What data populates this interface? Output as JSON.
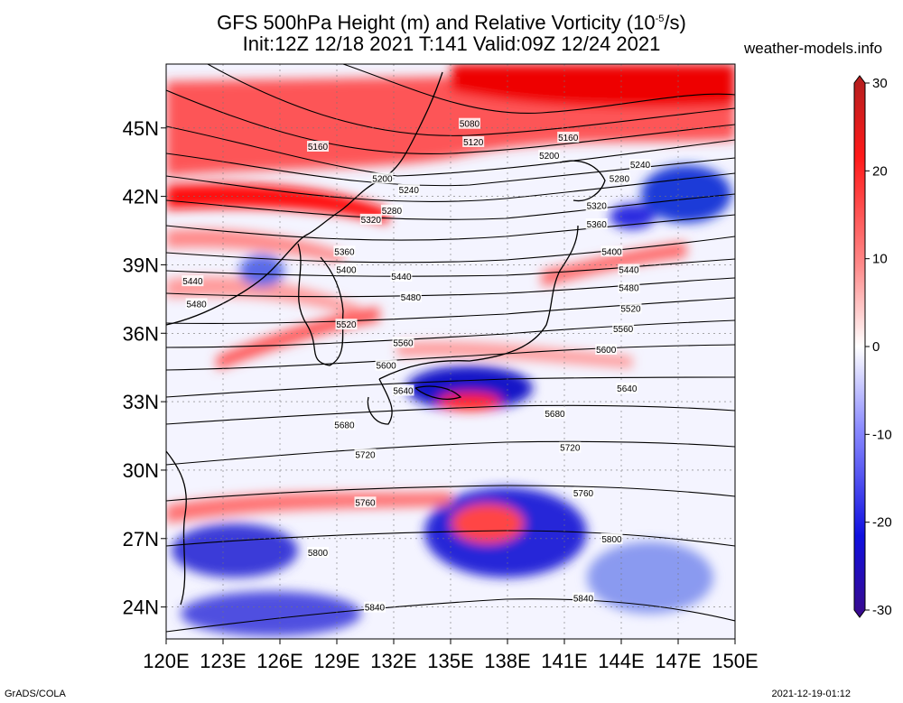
{
  "title_line1": "GFS 500hPa Height (m) and Relative Vorticity (10",
  "title_sup": "-5",
  "title_line1_end": "/s)",
  "title_line2": "Init:12Z 12/18 2021 T:141 Valid:09Z 12/24 2021",
  "site": "weather-models.info",
  "footer_left": "GrADS/COLA",
  "footer_right": "2021-12-19-01:12",
  "colors": {
    "positive": "#ff0000",
    "negative": "#0000dd",
    "neutral": "#ffffff",
    "contour": "#000000"
  },
  "map": {
    "lat_labels": [
      {
        "text": "45N",
        "lat": 45
      },
      {
        "text": "42N",
        "lat": 42
      },
      {
        "text": "39N",
        "lat": 39
      },
      {
        "text": "36N",
        "lat": 36
      },
      {
        "text": "33N",
        "lat": 33
      },
      {
        "text": "30N",
        "lat": 30
      },
      {
        "text": "27N",
        "lat": 27
      },
      {
        "text": "24N",
        "lat": 24
      }
    ],
    "lon_labels": [
      {
        "text": "120E",
        "lon": 120
      },
      {
        "text": "123E",
        "lon": 123
      },
      {
        "text": "126E",
        "lon": 126
      },
      {
        "text": "129E",
        "lon": 129
      },
      {
        "text": "132E",
        "lon": 132
      },
      {
        "text": "135E",
        "lon": 135
      },
      {
        "text": "138E",
        "lon": 138
      },
      {
        "text": "141E",
        "lon": 141
      },
      {
        "text": "144E",
        "lon": 144
      },
      {
        "text": "147E",
        "lon": 147
      },
      {
        "text": "150E",
        "lon": 150
      }
    ],
    "contour_labels": [
      {
        "text": "5080",
        "lon": 136.0,
        "lat": 45.2
      },
      {
        "text": "5120",
        "lon": 136.2,
        "lat": 44.4
      },
      {
        "text": "5160",
        "lon": 128.0,
        "lat": 44.2
      },
      {
        "text": "5160",
        "lon": 141.2,
        "lat": 44.6
      },
      {
        "text": "5200",
        "lon": 140.2,
        "lat": 43.8
      },
      {
        "text": "5200",
        "lon": 131.4,
        "lat": 42.8
      },
      {
        "text": "5240",
        "lon": 132.8,
        "lat": 42.3
      },
      {
        "text": "5240",
        "lon": 145.0,
        "lat": 43.4
      },
      {
        "text": "5280",
        "lon": 143.9,
        "lat": 42.8
      },
      {
        "text": "5280",
        "lon": 131.9,
        "lat": 41.4
      },
      {
        "text": "5320",
        "lon": 130.8,
        "lat": 41.0
      },
      {
        "text": "5320",
        "lon": 142.7,
        "lat": 41.6
      },
      {
        "text": "5360",
        "lon": 142.7,
        "lat": 40.8
      },
      {
        "text": "5360",
        "lon": 129.4,
        "lat": 39.6
      },
      {
        "text": "5400",
        "lon": 143.5,
        "lat": 39.6
      },
      {
        "text": "5400",
        "lon": 129.5,
        "lat": 38.8
      },
      {
        "text": "5440",
        "lon": 132.4,
        "lat": 38.5
      },
      {
        "text": "5440",
        "lon": 121.4,
        "lat": 38.3
      },
      {
        "text": "5440",
        "lon": 144.4,
        "lat": 38.8
      },
      {
        "text": "5480",
        "lon": 132.9,
        "lat": 37.6
      },
      {
        "text": "5480",
        "lon": 121.6,
        "lat": 37.3
      },
      {
        "text": "5480",
        "lon": 144.4,
        "lat": 38.0
      },
      {
        "text": "5520",
        "lon": 129.5,
        "lat": 36.4
      },
      {
        "text": "5520",
        "lon": 144.5,
        "lat": 37.1
      },
      {
        "text": "5560",
        "lon": 132.5,
        "lat": 35.6
      },
      {
        "text": "5560",
        "lon": 144.1,
        "lat": 36.2
      },
      {
        "text": "5600",
        "lon": 131.6,
        "lat": 34.6
      },
      {
        "text": "5600",
        "lon": 143.2,
        "lat": 35.3
      },
      {
        "text": "5640",
        "lon": 132.5,
        "lat": 33.5
      },
      {
        "text": "5640",
        "lon": 144.3,
        "lat": 33.6
      },
      {
        "text": "5680",
        "lon": 129.4,
        "lat": 32.0
      },
      {
        "text": "5680",
        "lon": 140.5,
        "lat": 32.5
      },
      {
        "text": "5720",
        "lon": 130.5,
        "lat": 30.7
      },
      {
        "text": "5720",
        "lon": 141.3,
        "lat": 31.0
      },
      {
        "text": "5760",
        "lon": 130.5,
        "lat": 28.6
      },
      {
        "text": "5760",
        "lon": 142.0,
        "lat": 29.0
      },
      {
        "text": "5800",
        "lon": 128.0,
        "lat": 26.4
      },
      {
        "text": "5800",
        "lon": 143.5,
        "lat": 27.0
      },
      {
        "text": "5840",
        "lon": 131.0,
        "lat": 24.0
      },
      {
        "text": "5840",
        "lon": 142.0,
        "lat": 24.4
      }
    ]
  },
  "colorbar": {
    "range": [
      -30,
      30
    ],
    "labels": [
      {
        "text": "30",
        "value": 30
      },
      {
        "text": "20",
        "value": 20
      },
      {
        "text": "10",
        "value": 10
      },
      {
        "text": "0",
        "value": 0
      },
      {
        "text": "-10",
        "value": -10
      },
      {
        "text": "-20",
        "value": -20
      },
      {
        "text": "-30",
        "value": -30
      }
    ]
  }
}
